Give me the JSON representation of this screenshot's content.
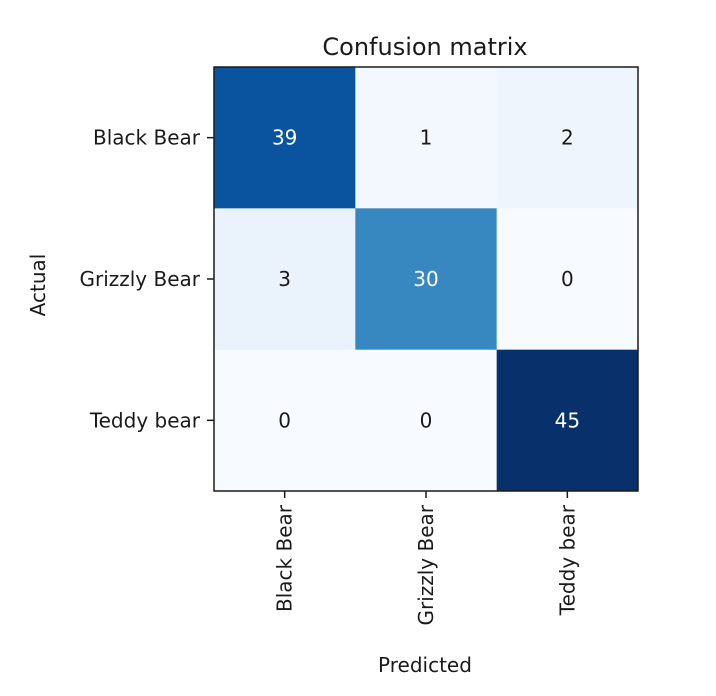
{
  "chart_data": {
    "type": "heatmap",
    "title": "Confusion matrix",
    "xlabel": "Predicted",
    "ylabel": "Actual",
    "x_categories": [
      "Black Bear",
      "Grizzly Bear",
      "Teddy bear"
    ],
    "y_categories": [
      "Black Bear",
      "Grizzly Bear",
      "Teddy bear"
    ],
    "values": [
      [
        39,
        1,
        2
      ],
      [
        3,
        30,
        0
      ],
      [
        0,
        0,
        45
      ]
    ],
    "colormap": "Blues",
    "vmin": 0,
    "vmax": 45,
    "grid": false
  }
}
